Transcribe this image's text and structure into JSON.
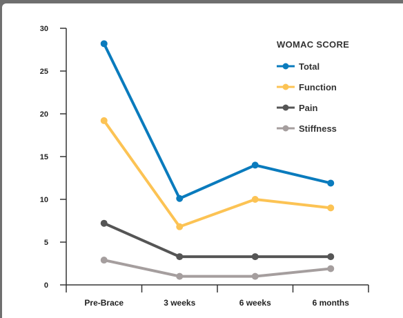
{
  "chart_data": {
    "type": "line",
    "title": "",
    "xlabel": "",
    "ylabel": "",
    "categories": [
      "Pre-Brace",
      "3 weeks",
      "6 weeks",
      "6 months"
    ],
    "ylim": [
      0,
      30
    ],
    "yticks": [
      0,
      5,
      10,
      15,
      20,
      25,
      30
    ],
    "grid": false,
    "legend": {
      "title": "WOMAC SCORE",
      "placement": "top-right"
    },
    "series": [
      {
        "name": "Total",
        "color": "#0a7bbd",
        "values": [
          28.2,
          10.1,
          14.0,
          11.9
        ]
      },
      {
        "name": "Function",
        "color": "#fcc354",
        "values": [
          19.2,
          6.8,
          10.0,
          9.0
        ]
      },
      {
        "name": "Pain",
        "color": "#555555",
        "values": [
          7.2,
          3.3,
          3.3,
          3.3
        ]
      },
      {
        "name": "Stiffness",
        "color": "#a59e9e",
        "values": [
          2.9,
          1.0,
          1.0,
          1.9
        ]
      }
    ]
  }
}
